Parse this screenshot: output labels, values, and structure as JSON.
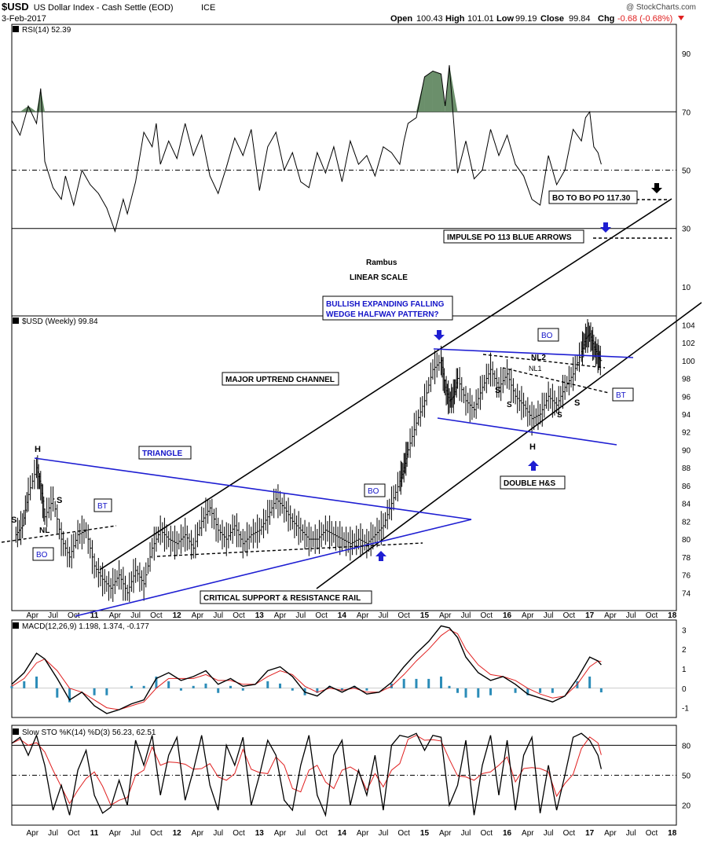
{
  "header": {
    "symbol": "$USD",
    "name": "US Dollar Index - Cash Settle (EOD)",
    "exchange": "ICE",
    "date": "3-Feb-2017",
    "open_label": "Open",
    "open": "100.43",
    "high_label": "High",
    "high": "101.01",
    "low_label": "Low",
    "low": "99.19",
    "close_label": "Close",
    "close": "99.84",
    "chg_label": "Chg",
    "chg": "-0.68 (-0.68%)",
    "watermark": "@ StockCharts.com"
  },
  "colors": {
    "price_bar": "#000000",
    "blue_line": "#1e1ed2",
    "blue_text": "#1414c8",
    "rsi_fill": "#6b8f6b",
    "macd_hist": "#2b8cb8",
    "red": "#e02020",
    "grid": "#000000"
  },
  "chart_data": [
    {
      "type": "line",
      "panel": "rsi",
      "title": "RSI(14) 52.39",
      "ylim": [
        0,
        100
      ],
      "yticks": [
        10,
        30,
        50,
        70,
        90
      ],
      "reference_lines": [
        30,
        50,
        70
      ],
      "series": [
        {
          "name": "RSI(14)",
          "x": [
            2009.95,
            2010.05,
            2010.15,
            2010.25,
            2010.3,
            2010.35,
            2010.45,
            2010.55,
            2010.6,
            2010.7,
            2010.8,
            2010.9,
            2011.0,
            2011.1,
            2011.2,
            2011.3,
            2011.35,
            2011.45,
            2011.55,
            2011.65,
            2011.7,
            2011.75,
            2011.85,
            2011.95,
            2012.05,
            2012.15,
            2012.25,
            2012.35,
            2012.45,
            2012.55,
            2012.65,
            2012.75,
            2012.85,
            2012.95,
            2013.05,
            2013.15,
            2013.25,
            2013.35,
            2013.45,
            2013.55,
            2013.65,
            2013.75,
            2013.85,
            2013.95,
            2014.05,
            2014.15,
            2014.25,
            2014.35,
            2014.45,
            2014.55,
            2014.65,
            2014.7,
            2014.75,
            2014.85,
            2014.95,
            2015.05,
            2015.15,
            2015.2,
            2015.25,
            2015.35,
            2015.45,
            2015.55,
            2015.65,
            2015.75,
            2015.85,
            2015.95,
            2016.05,
            2016.15,
            2016.25,
            2016.35,
            2016.45,
            2016.55,
            2016.65,
            2016.75,
            2016.85,
            2016.9,
            2016.95,
            2017.0,
            2017.05,
            2017.09
          ],
          "values": [
            67,
            62,
            72,
            66,
            78,
            53,
            44,
            40,
            48,
            38,
            50,
            45,
            42,
            37,
            29,
            40,
            35,
            46,
            63,
            58,
            66,
            52,
            60,
            54,
            66,
            55,
            62,
            48,
            42,
            51,
            61,
            55,
            64,
            43,
            58,
            63,
            50,
            56,
            46,
            44,
            56,
            49,
            58,
            46,
            60,
            52,
            55,
            48,
            58,
            56,
            52,
            60,
            66,
            68,
            82,
            84,
            83,
            72,
            86,
            49,
            60,
            47,
            50,
            64,
            55,
            62,
            52,
            48,
            40,
            38,
            55,
            45,
            50,
            64,
            60,
            68,
            70,
            58,
            56,
            52
          ]
        }
      ]
    },
    {
      "type": "bar",
      "panel": "price",
      "title": "$USD (Weekly) 99.84",
      "ylim": [
        72,
        105
      ],
      "yticks": [
        74,
        76,
        78,
        80,
        82,
        84,
        86,
        88,
        90,
        92,
        94,
        96,
        98,
        100,
        102,
        104
      ],
      "xlim": [
        2009.95,
        2018.0
      ],
      "x_tick_labels": [
        "Apr",
        "Jul",
        "Oct",
        "11",
        "Apr",
        "Jul",
        "Oct",
        "12",
        "Apr",
        "Jul",
        "Oct",
        "13",
        "Apr",
        "Jul",
        "Oct",
        "14",
        "Apr",
        "Jul",
        "Oct",
        "15",
        "Apr",
        "Jul",
        "Oct",
        "16",
        "Apr",
        "Jul",
        "Oct",
        "17",
        "Apr",
        "Jul",
        "Oct",
        "18"
      ],
      "series": [
        {
          "name": "$USD weekly close",
          "x": [
            2010.0,
            2010.08,
            2010.15,
            2010.25,
            2010.3,
            2010.35,
            2010.45,
            2010.55,
            2010.65,
            2010.75,
            2010.85,
            2010.95,
            2011.05,
            2011.15,
            2011.25,
            2011.35,
            2011.45,
            2011.55,
            2011.65,
            2011.75,
            2011.85,
            2011.95,
            2012.05,
            2012.15,
            2012.25,
            2012.35,
            2012.45,
            2012.55,
            2012.65,
            2012.75,
            2012.85,
            2012.95,
            2013.05,
            2013.15,
            2013.25,
            2013.35,
            2013.45,
            2013.55,
            2013.65,
            2013.75,
            2013.85,
            2013.95,
            2014.05,
            2014.15,
            2014.25,
            2014.35,
            2014.45,
            2014.55,
            2014.65,
            2014.7,
            2014.75,
            2014.85,
            2014.95,
            2015.05,
            2015.15,
            2015.2,
            2015.25,
            2015.3,
            2015.35,
            2015.45,
            2015.55,
            2015.65,
            2015.75,
            2015.85,
            2015.95,
            2016.05,
            2016.15,
            2016.25,
            2016.35,
            2016.45,
            2016.55,
            2016.65,
            2016.75,
            2016.85,
            2016.9,
            2016.95,
            2017.0,
            2017.05,
            2017.09
          ],
          "values": [
            80.5,
            81.5,
            85.0,
            88.0,
            86.0,
            82.5,
            84.5,
            80.0,
            78.0,
            80.5,
            81.0,
            77.0,
            75.5,
            74.5,
            76.0,
            74.0,
            76.5,
            75.0,
            79.0,
            81.0,
            80.0,
            79.5,
            80.5,
            79.0,
            82.0,
            83.5,
            81.0,
            80.0,
            81.5,
            79.5,
            80.5,
            81.0,
            82.5,
            84.5,
            83.5,
            82.0,
            81.0,
            80.0,
            80.0,
            81.0,
            80.5,
            80.0,
            79.5,
            80.0,
            79.5,
            80.5,
            81.5,
            84.0,
            86.5,
            88.0,
            90.0,
            93.0,
            95.5,
            99.0,
            100.0,
            97.0,
            95.5,
            96.0,
            98.0,
            95.5,
            94.5,
            97.0,
            99.0,
            97.0,
            98.5,
            96.0,
            95.0,
            93.5,
            94.0,
            96.0,
            95.0,
            97.0,
            98.5,
            101.0,
            102.5,
            103.0,
            101.5,
            100.5,
            99.84
          ]
        }
      ],
      "annotations": [
        "H",
        "S",
        "NL",
        "BO",
        "BT",
        "TRIANGLE",
        "BO",
        "CRITICAL SUPPORT & RESISTANCE RAIL",
        "MAJOR UPTREND CHANNEL",
        "BULLISH EXPANDING FALLING WEDGE HALFWAY PATTERN?",
        "BO",
        "NL2",
        "NL1",
        "S",
        "S",
        "S",
        "S",
        "H",
        "DOUBLE H&S",
        "BT",
        "Rambus",
        "LINEAR SCALE",
        "BO TO BO PO 117.30",
        "IMPULSE PO 113 BLUE ARROWS"
      ]
    },
    {
      "type": "line",
      "panel": "macd",
      "title": "MACD(12,26,9) 1.198, 1.374, -0.177",
      "ylim": [
        -1.5,
        3.5
      ],
      "yticks": [
        -1,
        0,
        1,
        2,
        3
      ],
      "series": [
        {
          "name": "MACD",
          "x": [
            2009.95,
            2010.1,
            2010.25,
            2010.35,
            2010.5,
            2010.65,
            2010.8,
            2010.95,
            2011.1,
            2011.25,
            2011.4,
            2011.55,
            2011.7,
            2011.85,
            2012.0,
            2012.15,
            2012.3,
            2012.45,
            2012.6,
            2012.75,
            2012.9,
            2013.05,
            2013.2,
            2013.35,
            2013.5,
            2013.65,
            2013.8,
            2013.95,
            2014.1,
            2014.25,
            2014.4,
            2014.55,
            2014.7,
            2014.85,
            2015.0,
            2015.15,
            2015.25,
            2015.35,
            2015.45,
            2015.6,
            2015.75,
            2015.9,
            2016.05,
            2016.2,
            2016.35,
            2016.5,
            2016.65,
            2016.8,
            2016.95,
            2017.05,
            2017.09
          ],
          "values": [
            0.2,
            0.8,
            1.8,
            1.5,
            0.5,
            -0.6,
            -0.2,
            -0.9,
            -1.3,
            -1.1,
            -0.8,
            -0.6,
            0.5,
            0.8,
            0.4,
            0.6,
            0.9,
            0.2,
            0.5,
            0.1,
            0.2,
            0.9,
            1.1,
            0.6,
            -0.2,
            -0.4,
            0.1,
            -0.2,
            0.1,
            -0.3,
            -0.2,
            0.3,
            1.1,
            1.8,
            2.4,
            3.2,
            3.1,
            2.6,
            1.6,
            0.8,
            0.4,
            0.6,
            0.2,
            -0.3,
            -0.5,
            -0.7,
            -0.4,
            0.5,
            1.6,
            1.4,
            1.198
          ]
        },
        {
          "name": "Signal",
          "x": [
            2009.95,
            2010.1,
            2010.25,
            2010.35,
            2010.5,
            2010.65,
            2010.8,
            2010.95,
            2011.1,
            2011.25,
            2011.4,
            2011.55,
            2011.7,
            2011.85,
            2012.0,
            2012.15,
            2012.3,
            2012.45,
            2012.6,
            2012.75,
            2012.9,
            2013.05,
            2013.2,
            2013.35,
            2013.5,
            2013.65,
            2013.8,
            2013.95,
            2014.1,
            2014.25,
            2014.4,
            2014.55,
            2014.7,
            2014.85,
            2015.0,
            2015.15,
            2015.25,
            2015.35,
            2015.45,
            2015.6,
            2015.75,
            2015.9,
            2016.05,
            2016.2,
            2016.35,
            2016.5,
            2016.65,
            2016.8,
            2016.95,
            2017.05,
            2017.09
          ],
          "values": [
            0.1,
            0.5,
            1.3,
            1.5,
            0.9,
            0.0,
            -0.2,
            -0.6,
            -1.0,
            -1.1,
            -0.9,
            -0.7,
            0.0,
            0.5,
            0.5,
            0.5,
            0.7,
            0.4,
            0.4,
            0.2,
            0.2,
            0.6,
            0.9,
            0.7,
            0.1,
            -0.2,
            0.0,
            -0.1,
            0.0,
            -0.2,
            -0.2,
            0.1,
            0.7,
            1.4,
            2.0,
            2.7,
            3.0,
            2.8,
            2.0,
            1.2,
            0.7,
            0.6,
            0.4,
            0.0,
            -0.3,
            -0.5,
            -0.4,
            0.2,
            1.1,
            1.4,
            1.374
          ]
        }
      ]
    },
    {
      "type": "line",
      "panel": "stochastic",
      "title": "Slow STO %K(14) %D(3) 56.23, 62.51",
      "ylim": [
        0,
        100
      ],
      "yticks": [
        20,
        50,
        80
      ],
      "reference_lines": [
        20,
        50,
        80
      ],
      "series": [
        {
          "name": "%K",
          "x": [
            2009.95,
            2010.05,
            2010.15,
            2010.25,
            2010.35,
            2010.45,
            2010.55,
            2010.65,
            2010.75,
            2010.85,
            2010.95,
            2011.05,
            2011.15,
            2011.25,
            2011.35,
            2011.45,
            2011.55,
            2011.65,
            2011.75,
            2011.85,
            2011.95,
            2012.05,
            2012.15,
            2012.25,
            2012.35,
            2012.45,
            2012.55,
            2012.65,
            2012.75,
            2012.85,
            2012.95,
            2013.05,
            2013.15,
            2013.25,
            2013.35,
            2013.45,
            2013.55,
            2013.65,
            2013.75,
            2013.85,
            2013.95,
            2014.05,
            2014.15,
            2014.25,
            2014.35,
            2014.45,
            2014.55,
            2014.65,
            2014.75,
            2014.85,
            2014.95,
            2015.05,
            2015.15,
            2015.25,
            2015.35,
            2015.45,
            2015.55,
            2015.65,
            2015.75,
            2015.85,
            2015.95,
            2016.05,
            2016.15,
            2016.25,
            2016.35,
            2016.45,
            2016.55,
            2016.65,
            2016.75,
            2016.85,
            2016.95,
            2017.05,
            2017.09
          ],
          "values": [
            82,
            88,
            70,
            90,
            60,
            15,
            40,
            10,
            55,
            75,
            30,
            12,
            18,
            45,
            20,
            85,
            60,
            90,
            30,
            70,
            88,
            25,
            55,
            90,
            40,
            15,
            80,
            60,
            88,
            20,
            50,
            85,
            70,
            25,
            15,
            60,
            90,
            30,
            10,
            70,
            85,
            20,
            55,
            30,
            70,
            15,
            80,
            90,
            88,
            92,
            75,
            90,
            88,
            20,
            40,
            85,
            10,
            60,
            90,
            30,
            85,
            15,
            70,
            88,
            12,
            60,
            15,
            50,
            88,
            92,
            85,
            70,
            56.23
          ]
        }
      ]
    }
  ]
}
